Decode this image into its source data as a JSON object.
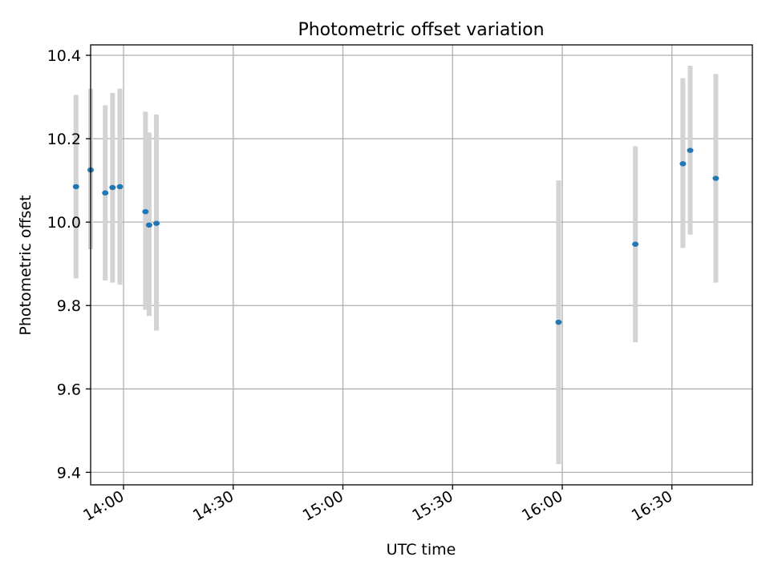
{
  "chart_data": {
    "type": "scatter",
    "title": "Photometric offset variation",
    "xlabel": "UTC time",
    "ylabel": "Photometric offset",
    "xlim": [
      "13:51",
      "16:52"
    ],
    "ylim": [
      9.37,
      10.425
    ],
    "x_ticks": [
      "14:00",
      "14:30",
      "15:00",
      "15:30",
      "16:00",
      "16:30"
    ],
    "y_ticks": [
      "9.4",
      "9.6",
      "9.8",
      "10.0",
      "10.2",
      "10.4"
    ],
    "grid": true,
    "marker_color": "#1f77b4",
    "errorbar_color": "#d3d3d3",
    "points": [
      {
        "x": "13:47",
        "y": 10.085,
        "err_low": 9.865,
        "err_high": 10.305
      },
      {
        "x": "13:51",
        "y": 10.125,
        "err_low": 9.935,
        "err_high": 10.32
      },
      {
        "x": "13:55",
        "y": 10.07,
        "err_low": 9.86,
        "err_high": 10.28
      },
      {
        "x": "13:57",
        "y": 10.083,
        "err_low": 9.855,
        "err_high": 10.31
      },
      {
        "x": "13:59",
        "y": 10.085,
        "err_low": 9.85,
        "err_high": 10.32
      },
      {
        "x": "14:06",
        "y": 10.025,
        "err_low": 9.79,
        "err_high": 10.265
      },
      {
        "x": "14:07",
        "y": 9.993,
        "err_low": 9.775,
        "err_high": 10.215
      },
      {
        "x": "14:09",
        "y": 9.997,
        "err_low": 9.74,
        "err_high": 10.258
      },
      {
        "x": "15:59",
        "y": 9.76,
        "err_low": 9.42,
        "err_high": 10.1
      },
      {
        "x": "16:20",
        "y": 9.947,
        "err_low": 9.712,
        "err_high": 10.182
      },
      {
        "x": "16:33",
        "y": 10.14,
        "err_low": 9.938,
        "err_high": 10.345
      },
      {
        "x": "16:35",
        "y": 10.172,
        "err_low": 9.97,
        "err_high": 10.375
      },
      {
        "x": "16:42",
        "y": 10.105,
        "err_low": 9.855,
        "err_high": 10.355
      }
    ]
  }
}
